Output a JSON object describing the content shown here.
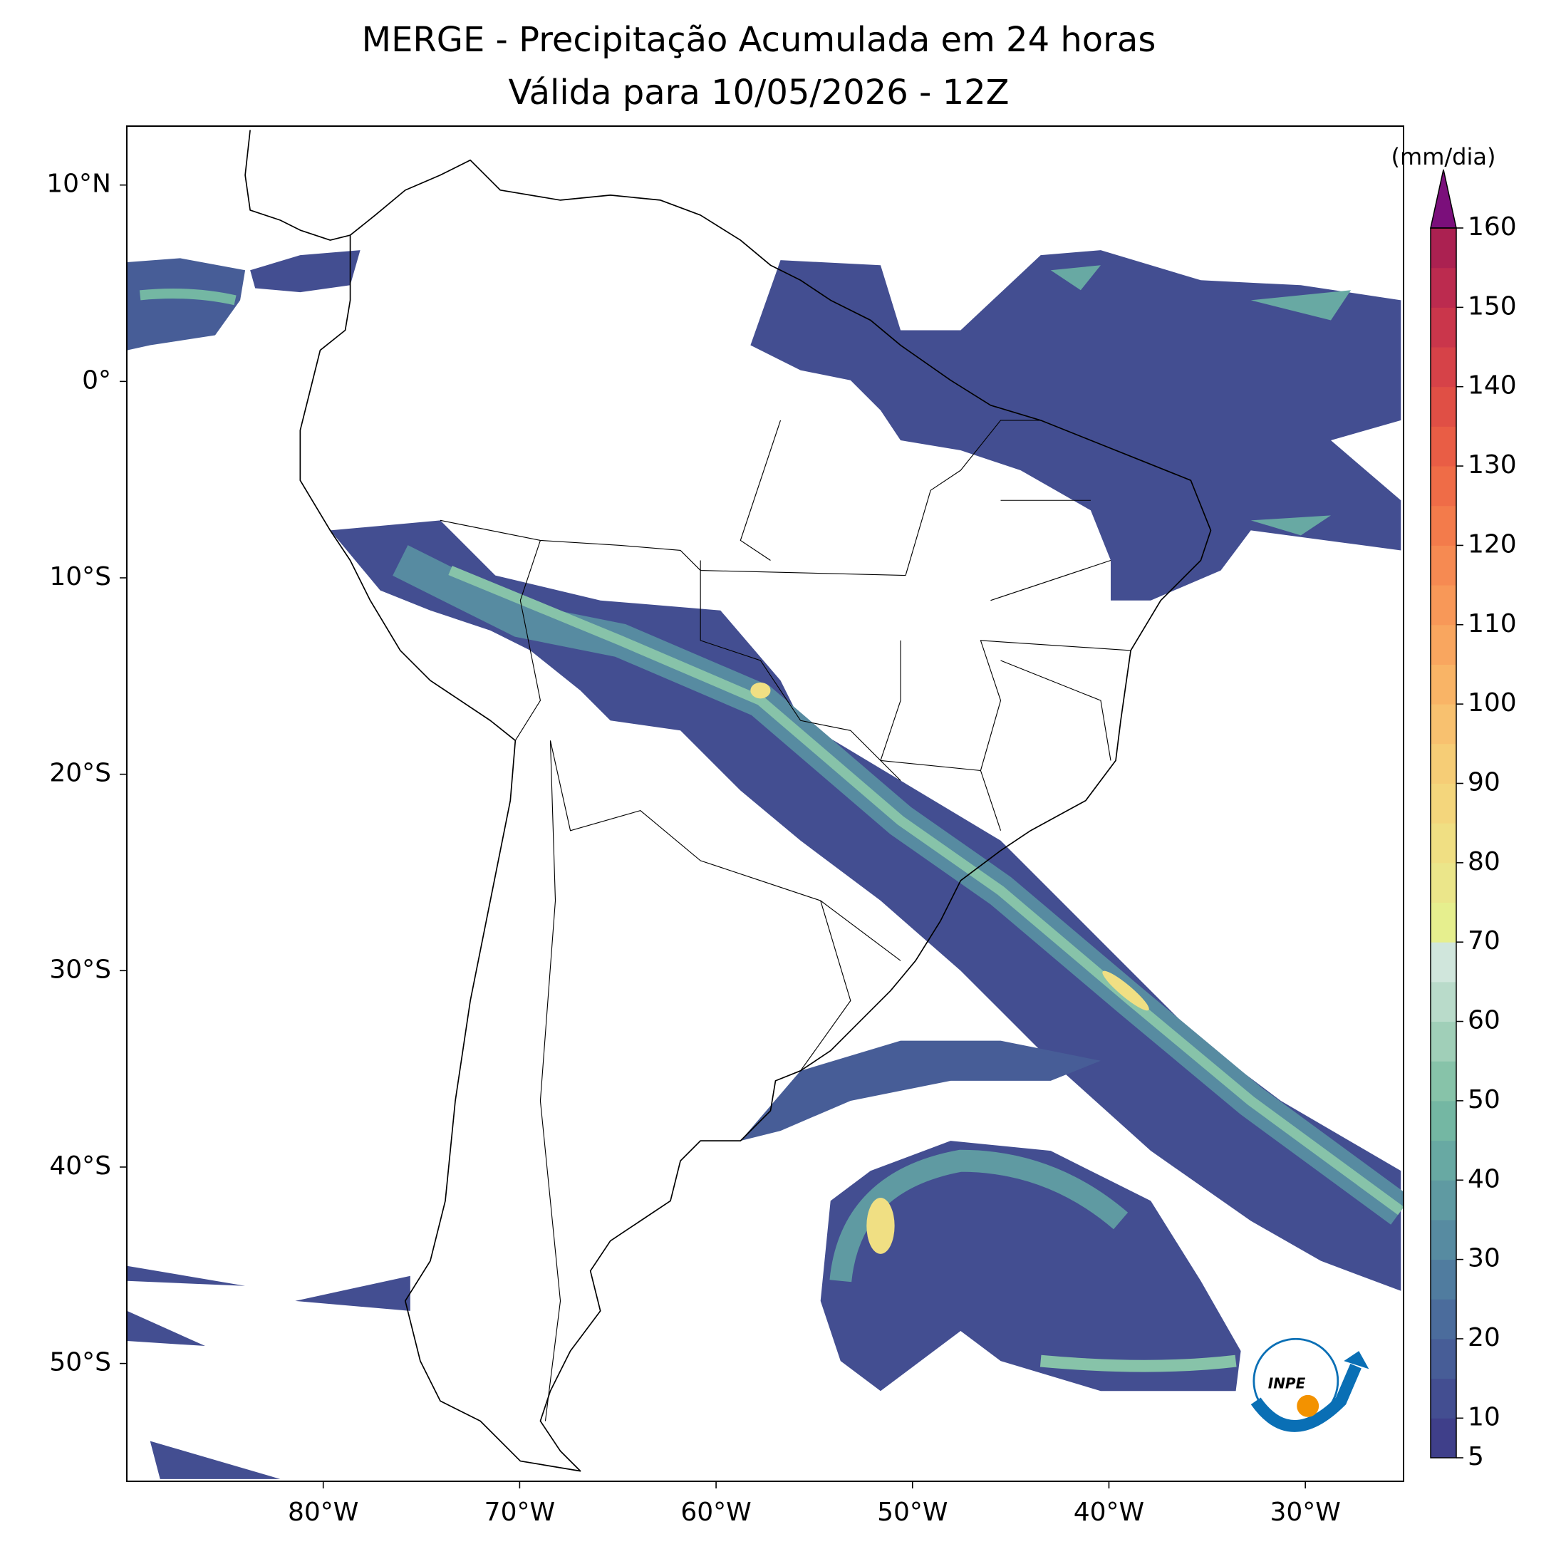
{
  "title": "MERGE - Precipitação Acumulada em 24 horas",
  "subtitle": "Válida para 10/05/2026 - 12Z",
  "map": {
    "xlim": [
      -90,
      -25
    ],
    "ylim": [
      -56,
      13
    ],
    "xticks": [
      {
        "value": -80,
        "label": "80°W"
      },
      {
        "value": -70,
        "label": "70°W"
      },
      {
        "value": -60,
        "label": "60°W"
      },
      {
        "value": -50,
        "label": "50°W"
      },
      {
        "value": -40,
        "label": "40°W"
      },
      {
        "value": -30,
        "label": "30°W"
      }
    ],
    "yticks": [
      {
        "value": 10,
        "label": "10°N"
      },
      {
        "value": 0,
        "label": "0°"
      },
      {
        "value": -10,
        "label": "10°S"
      },
      {
        "value": -20,
        "label": "20°S"
      },
      {
        "value": -30,
        "label": "30°S"
      },
      {
        "value": -40,
        "label": "40°S"
      },
      {
        "value": -50,
        "label": "50°S"
      }
    ]
  },
  "colorbar": {
    "label": "(mm/dia)",
    "range": [
      5,
      160
    ],
    "ticks": [
      5,
      10,
      20,
      30,
      40,
      50,
      60,
      70,
      80,
      90,
      100,
      110,
      120,
      130,
      140,
      150,
      160
    ],
    "colors": [
      "#3f3f8a",
      "#434e91",
      "#475d97",
      "#4b6c9c",
      "#507c9f",
      "#578ba1",
      "#5f9aa2",
      "#68a9a3",
      "#74b7a3",
      "#87c3a9",
      "#a0cfb8",
      "#b9dbca",
      "#d0e6dc",
      "#e6ef8e",
      "#ebe68a",
      "#f0df83",
      "#f4d67c",
      "#f6cd76",
      "#f8c16f",
      "#f9b466",
      "#f9a65f",
      "#f89858",
      "#f68a52",
      "#f37b4b",
      "#ef6c47",
      "#e95d45",
      "#e04f45",
      "#d64248",
      "#ca364b",
      "#bc2b4f",
      "#ab2151"
    ],
    "extend_color": "#7b0f7b"
  },
  "logo": "INPE"
}
